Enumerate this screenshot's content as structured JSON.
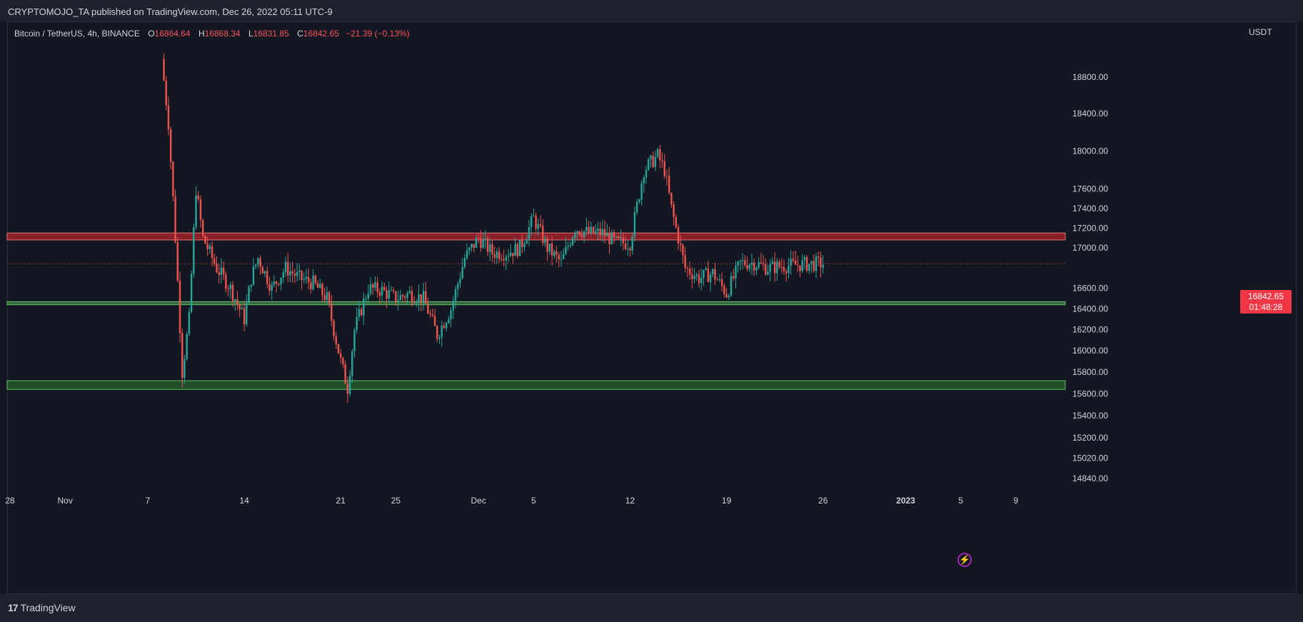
{
  "header": {
    "published": "CRYPTOMOJO_TA published on TradingView.com, Dec 26, 2022 05:11 UTC-9"
  },
  "legend": {
    "symbol": "Bitcoin / TetherUS, 4h, BINANCE",
    "open_label": "O",
    "open": "16864.64",
    "high_label": "H",
    "high": "16868.34",
    "low_label": "L",
    "low": "16831.85",
    "close_label": "C",
    "close": "16842.65",
    "change": "−21.39 (−0.13%)"
  },
  "price_axis": {
    "currency": "USDT",
    "last_price": "16842.65",
    "countdown": "01:48:28"
  },
  "footer": {
    "brand": "TradingView",
    "brand_mark": "17"
  },
  "colors": {
    "up": "#26a69a",
    "down": "#ef5350",
    "resistance_zone": "#b2242c",
    "support_zone": "#2e7d32",
    "support_line": "#4caf50",
    "background": "#131722"
  },
  "chart_data": {
    "type": "candlestick",
    "interval": "4h",
    "x_ticks": [
      "28",
      "Nov",
      "7",
      "14",
      "21",
      "25",
      "Dec",
      "5",
      "12",
      "19",
      "26",
      "2023",
      "5",
      "9"
    ],
    "y_ticks": [
      "18800.00",
      "18400.00",
      "18000.00",
      "17600.00",
      "17400.00",
      "17200.00",
      "17000.00",
      "16600.00",
      "16400.00",
      "16200.00",
      "16000.00",
      "15800.00",
      "15600.00",
      "15400.00",
      "15200.00",
      "15020.00",
      "14840.00"
    ],
    "y_scale": "log",
    "ylim": [
      14780,
      19100
    ],
    "grid": false,
    "last_price": 16842.65,
    "zones": [
      {
        "name": "resistance",
        "from": 17080,
        "to": 17150,
        "color": "#b2242c"
      },
      {
        "name": "support",
        "from": 16440,
        "to": 16470,
        "color": "#4caf50"
      },
      {
        "name": "support",
        "from": 15640,
        "to": 15720,
        "color": "#2e7d32"
      }
    ],
    "price_path": [
      [
        "Nov 8",
        19000
      ],
      [
        "Nov 8",
        18300
      ],
      [
        "Nov 9",
        17100
      ],
      [
        "Nov 9",
        15800
      ],
      [
        "Nov 10",
        16300
      ],
      [
        "Nov 10",
        17600
      ],
      [
        "Nov 11",
        17100
      ],
      [
        "Nov 12",
        16800
      ],
      [
        "Nov 13",
        16600
      ],
      [
        "Nov 14",
        16300
      ],
      [
        "Nov 14",
        16700
      ],
      [
        "Nov 15",
        16900
      ],
      [
        "Nov 16",
        16600
      ],
      [
        "Nov 17",
        16800
      ],
      [
        "Nov 18",
        16700
      ],
      [
        "Nov 19",
        16650
      ],
      [
        "Nov 20",
        16500
      ],
      [
        "Nov 21",
        15900
      ],
      [
        "Nov 21",
        15650
      ],
      [
        "Nov 22",
        16200
      ],
      [
        "Nov 23",
        16600
      ],
      [
        "Nov 24",
        16580
      ],
      [
        "Nov 25",
        16500
      ],
      [
        "Nov 26",
        16550
      ],
      [
        "Nov 27",
        16500
      ],
      [
        "Nov 28",
        16150
      ],
      [
        "Nov 29",
        16400
      ],
      [
        "Nov 30",
        16900
      ],
      [
        "Dec 1",
        17100
      ],
      [
        "Dec 2",
        16950
      ],
      [
        "Dec 3",
        16950
      ],
      [
        "Dec 4",
        17000
      ],
      [
        "Dec 5",
        17300
      ],
      [
        "Dec 6",
        17000
      ],
      [
        "Dec 7",
        16850
      ],
      [
        "Dec 8",
        17200
      ],
      [
        "Dec 9",
        17150
      ],
      [
        "Dec 10",
        17150
      ],
      [
        "Dec 11",
        17050
      ],
      [
        "Dec 12",
        17050
      ],
      [
        "Dec 13",
        17800
      ],
      [
        "Dec 14",
        17950
      ],
      [
        "Dec 14",
        17800
      ],
      [
        "Dec 15",
        17400
      ],
      [
        "Dec 16",
        16800
      ],
      [
        "Dec 17",
        16700
      ],
      [
        "Dec 18",
        16750
      ],
      [
        "Dec 19",
        16550
      ],
      [
        "Dec 20",
        16850
      ],
      [
        "Dec 21",
        16850
      ],
      [
        "Dec 22",
        16800
      ],
      [
        "Dec 23",
        16820
      ],
      [
        "Dec 24",
        16830
      ],
      [
        "Dec 25",
        16840
      ],
      [
        "Dec 26",
        16842
      ]
    ]
  }
}
